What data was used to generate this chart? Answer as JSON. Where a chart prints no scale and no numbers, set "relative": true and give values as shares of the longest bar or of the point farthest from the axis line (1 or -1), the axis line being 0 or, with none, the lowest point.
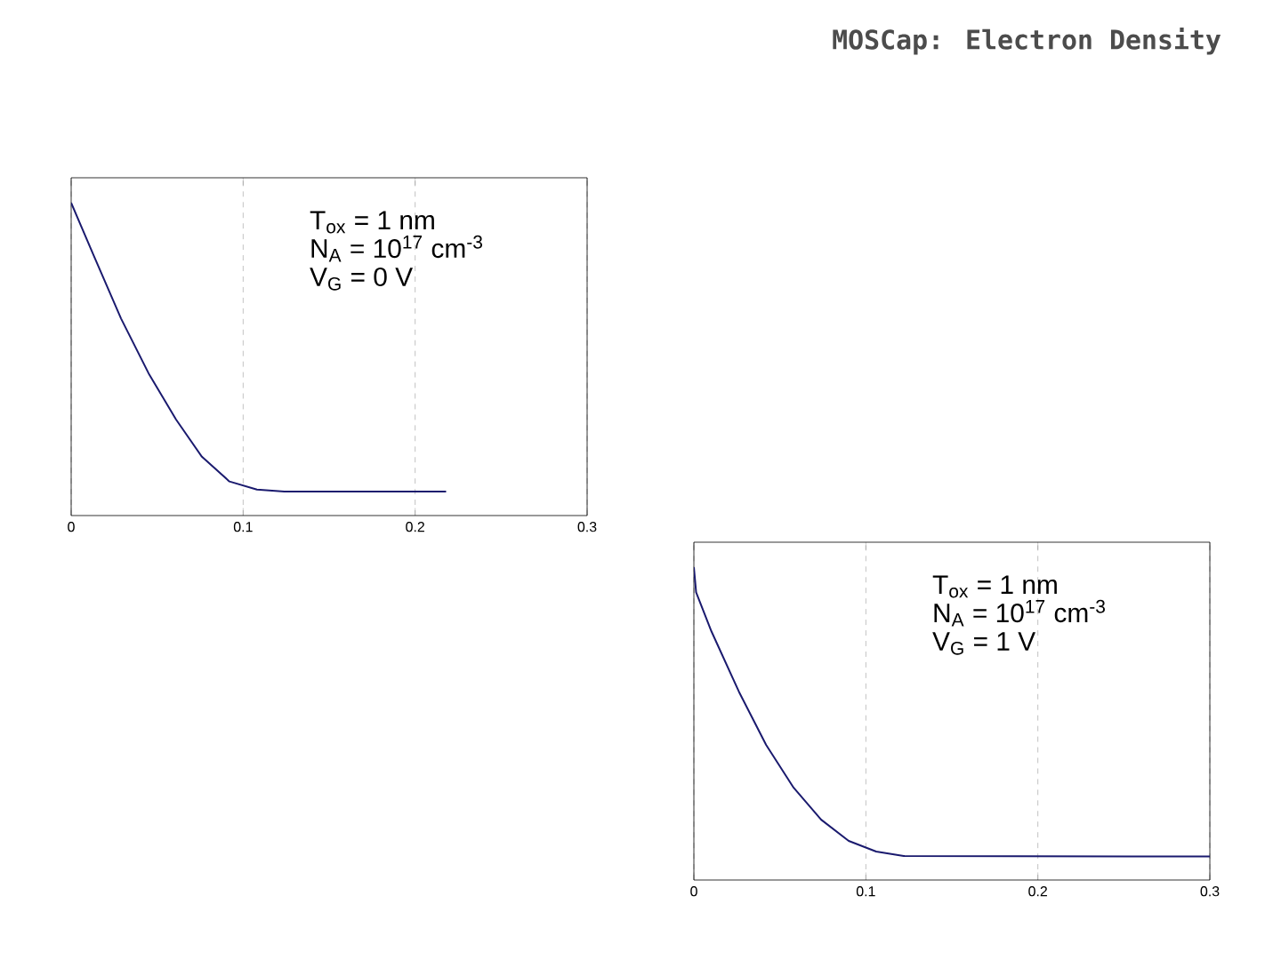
{
  "chart_data": [
    {
      "type": "line",
      "relative": true,
      "color": "#1a1a6e",
      "xlim": [
        0,
        0.3
      ],
      "xticks": [
        0,
        0.1,
        0.2,
        0.3
      ],
      "grid": "x",
      "x": [
        0,
        0.0132,
        0.029,
        0.045,
        0.061,
        0.076,
        0.092,
        0.108,
        0.124,
        0.218
      ],
      "values": [
        1.0,
        0.83,
        0.63,
        0.455,
        0.307,
        0.188,
        0.109,
        0.083,
        0.077,
        0.077
      ],
      "annotations": [
        "T$_{ox}$ = 1 nm",
        "N$_{A}$ = 10$^{17}$ cm$^{-3}$",
        "V$_{G}$ = 0 V"
      ]
    },
    {
      "type": "line",
      "title": "MOSCap: Electron Density",
      "relative": true,
      "color": "#1a1a6e",
      "xlim": [
        0,
        0.3
      ],
      "xticks": [
        0,
        0.1,
        0.2,
        0.3
      ],
      "grid": "x",
      "x": [
        0,
        0.0013,
        0.0102,
        0.0262,
        0.042,
        0.058,
        0.074,
        0.09,
        0.106,
        0.122,
        0.3
      ],
      "values": [
        1.0,
        0.92,
        0.795,
        0.602,
        0.432,
        0.295,
        0.193,
        0.125,
        0.091,
        0.077,
        0.075
      ],
      "annotations": [
        "T$_{ox}$ = 1 nm",
        "N$_{A}$ = 10$^{17}$ cm$^{-3}$",
        "V$_{G}$ = 1 V"
      ]
    }
  ]
}
